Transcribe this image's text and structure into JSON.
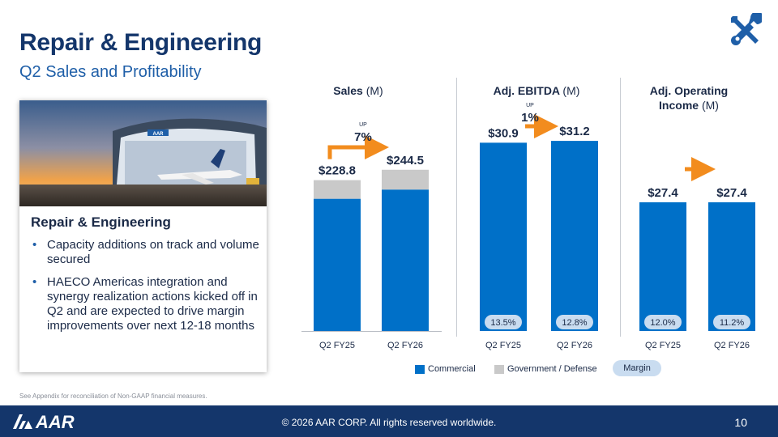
{
  "header": {
    "title": "Repair & Engineering",
    "subtitle": "Q2 Sales and Profitability"
  },
  "card": {
    "heading": "Repair & Engineering",
    "bullets": [
      "Capacity additions on track and volume secured",
      "HAECO Americas integration and synergy realization actions kicked off in Q2 and are expected to drive margin improvements over next 12-18 months"
    ],
    "photo_sign": "AAR"
  },
  "colors": {
    "commercial": "#0070c8",
    "government": "#c9c9c9",
    "margin_pill": "#c9dcf0",
    "arrow": "#f28c1e",
    "navy": "#14366b"
  },
  "chart_data": [
    {
      "type": "bar",
      "title": "Sales",
      "unit": "(M)",
      "categories": [
        "Q2 FY25",
        "Q2 FY26"
      ],
      "series": [
        {
          "name": "Commercial",
          "values": [
            200.5,
            214.5
          ]
        },
        {
          "name": "Government / Defense",
          "values": [
            28.3,
            30.0
          ]
        }
      ],
      "totals": [
        "$228.8",
        "$244.5"
      ],
      "change": {
        "direction": "UP",
        "value": "7%"
      },
      "ylim": [
        0,
        270
      ]
    },
    {
      "type": "bar",
      "title": "Adj. EBITDA",
      "unit": "(M)",
      "categories": [
        "Q2 FY25",
        "Q2 FY26"
      ],
      "series": [
        {
          "name": "Commercial",
          "values": [
            30.9,
            31.2
          ]
        }
      ],
      "totals": [
        "$30.9",
        "$31.2"
      ],
      "margins": [
        "13.5%",
        "12.8%"
      ],
      "change": {
        "direction": "UP",
        "value": "1%"
      },
      "ylim": [
        0,
        34.4
      ]
    },
    {
      "type": "bar",
      "title": "Adj. Operating Income",
      "unit": "(M)",
      "categories": [
        "Q2 FY25",
        "Q2 FY26"
      ],
      "series": [
        {
          "name": "Commercial",
          "values": [
            27.4,
            27.4
          ]
        }
      ],
      "totals": [
        "$27.4",
        "$27.4"
      ],
      "margins": [
        "12.0%",
        "11.2%"
      ],
      "ylim": [
        0,
        36.0
      ]
    }
  ],
  "legend": {
    "commercial": "Commercial",
    "government": "Government / Defense",
    "margin": "Margin"
  },
  "footer": {
    "logo_text": "AAR",
    "copyright": "© 2026 AAR CORP. All rights reserved worldwide.",
    "page_number": "10",
    "footnote": "See Appendix for reconciliation of Non-GAAP financial measures."
  }
}
